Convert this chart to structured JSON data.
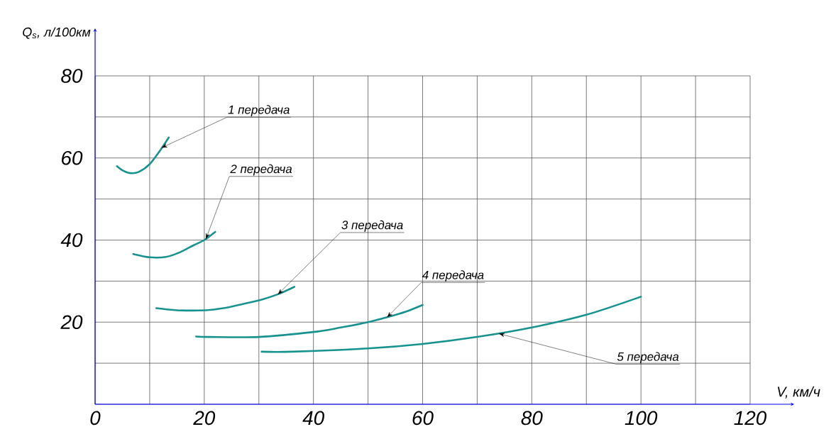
{
  "chart_data": {
    "type": "line",
    "xlabel": "V, км/ч",
    "ylabel": "Q$_{s}$, л/100км",
    "xlim": [
      0,
      120
    ],
    "ylim": [
      0,
      80
    ],
    "xticks": [
      0,
      {
        "value": 10,
        "label": null
      },
      20,
      {
        "value": 30,
        "label": null
      },
      40,
      {
        "value": 50,
        "label": null
      },
      60,
      {
        "value": 70,
        "label": null
      },
      80,
      {
        "value": 90,
        "label": null
      },
      100,
      {
        "value": 110,
        "label": null
      },
      120
    ],
    "yticks": [
      {
        "value": 0,
        "label": null
      },
      {
        "value": 10,
        "label": null
      },
      20,
      {
        "value": 30,
        "label": null
      },
      40,
      {
        "value": 50,
        "label": null
      },
      60,
      {
        "value": 70,
        "label": null
      },
      80
    ],
    "grid": true,
    "marker": "none",
    "line_style": "solid",
    "series": [
      {
        "color": "#17938f",
        "x": [
          4,
          5,
          6.5,
          8,
          10,
          12,
          13.5
        ],
        "values": [
          58,
          57,
          56.3,
          56.6,
          58.5,
          62,
          65
        ]
      },
      {
        "color": "#17938f",
        "x": [
          7,
          10,
          13,
          15.5,
          18,
          20,
          22
        ],
        "values": [
          36.6,
          35.8,
          35.9,
          37,
          38.7,
          40,
          42
        ]
      },
      {
        "color": "#17938f",
        "x": [
          11.2,
          15,
          20.3,
          23.5,
          27,
          30.5,
          33.5,
          36.5
        ],
        "values": [
          23.4,
          22.9,
          22.9,
          23.4,
          24.4,
          25.5,
          26.8,
          28.6
        ]
      },
      {
        "color": "#17938f",
        "x": [
          18.5,
          21,
          30,
          40,
          45,
          50,
          53.5,
          57,
          60
        ],
        "values": [
          16.5,
          16.4,
          16.4,
          17.6,
          18.7,
          20,
          21.2,
          22.6,
          24.2
        ]
      },
      {
        "color": "#17938f",
        "x": [
          30.5,
          36,
          50,
          60,
          70,
          80,
          90,
          100
        ],
        "values": [
          12.8,
          12.8,
          13.6,
          14.7,
          16.4,
          18.7,
          21.8,
          26.2
        ]
      }
    ],
    "annotations": [
      {
        "text": "1 передача",
        "x": 12.2,
        "y": 62.5
      },
      {
        "text": "2 передача",
        "x": 20.3,
        "y": 40.3
      },
      {
        "text": "3 передача",
        "x": 33.5,
        "y": 26.8
      },
      {
        "text": "4 передача",
        "x": 53.5,
        "y": 21.2
      },
      {
        "text": "5 передача",
        "x": 74,
        "y": 17.2
      }
    ]
  }
}
